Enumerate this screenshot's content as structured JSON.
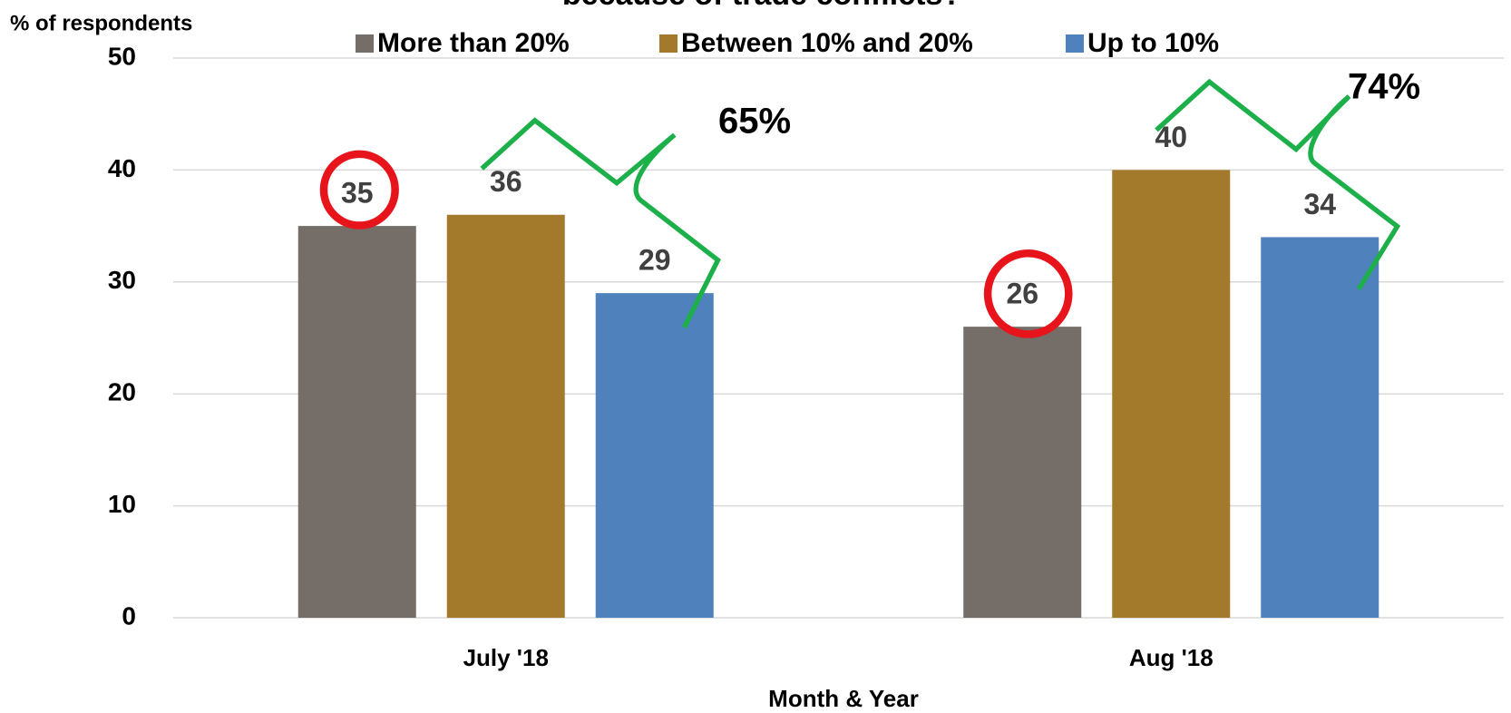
{
  "chart_data": {
    "type": "bar",
    "title": "because of trade conflicts?",
    "y_label": "% of respondents",
    "x_label": "Month & Year",
    "categories": [
      "July '18",
      "Aug '18"
    ],
    "series": [
      {
        "name": "More than 20%",
        "color": "#756d67",
        "values": [
          35,
          26
        ]
      },
      {
        "name": "Between 10% and 20%",
        "color": "#a37a2c",
        "values": [
          36,
          40
        ]
      },
      {
        "name": "Up to 10%",
        "color": "#4f81bd",
        "values": [
          29,
          34
        ]
      }
    ],
    "ylim": [
      0,
      50
    ],
    "yticks": [
      0,
      10,
      20,
      30,
      40,
      50
    ],
    "grid": true,
    "legend": "top",
    "annotations": [
      "65%",
      "74%"
    ]
  }
}
